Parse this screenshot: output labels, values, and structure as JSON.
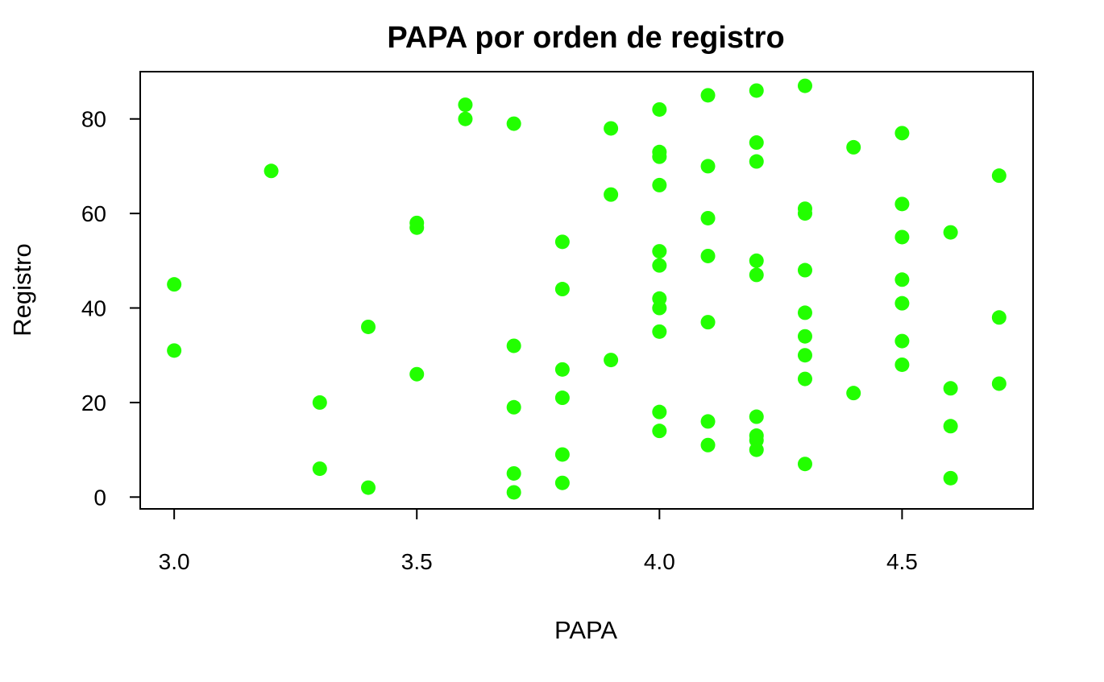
{
  "chart_data": {
    "type": "scatter",
    "title": "PAPA por orden de registro",
    "xlabel": "PAPA",
    "ylabel": "Registro",
    "xlim": [
      2.93,
      4.77
    ],
    "ylim": [
      -2.5,
      90
    ],
    "x_ticks": [
      3.0,
      3.5,
      4.0,
      4.5
    ],
    "x_tick_labels": [
      "3.0",
      "3.5",
      "4.0",
      "4.5"
    ],
    "y_ticks": [
      0,
      20,
      40,
      60,
      80
    ],
    "y_tick_labels": [
      "0",
      "20",
      "40",
      "60",
      "80"
    ],
    "grid": false,
    "point_color": "#22ff00",
    "points": [
      {
        "x": 3.0,
        "y": 45
      },
      {
        "x": 3.0,
        "y": 31
      },
      {
        "x": 3.2,
        "y": 69
      },
      {
        "x": 3.3,
        "y": 20
      },
      {
        "x": 3.3,
        "y": 6
      },
      {
        "x": 3.4,
        "y": 36
      },
      {
        "x": 3.4,
        "y": 2
      },
      {
        "x": 3.5,
        "y": 58
      },
      {
        "x": 3.5,
        "y": 57
      },
      {
        "x": 3.5,
        "y": 26
      },
      {
        "x": 3.6,
        "y": 83
      },
      {
        "x": 3.6,
        "y": 80
      },
      {
        "x": 3.7,
        "y": 79
      },
      {
        "x": 3.7,
        "y": 32
      },
      {
        "x": 3.7,
        "y": 19
      },
      {
        "x": 3.7,
        "y": 5
      },
      {
        "x": 3.7,
        "y": 1
      },
      {
        "x": 3.8,
        "y": 54
      },
      {
        "x": 3.8,
        "y": 44
      },
      {
        "x": 3.8,
        "y": 27
      },
      {
        "x": 3.8,
        "y": 21
      },
      {
        "x": 3.8,
        "y": 9
      },
      {
        "x": 3.8,
        "y": 3
      },
      {
        "x": 3.9,
        "y": 78
      },
      {
        "x": 3.9,
        "y": 64
      },
      {
        "x": 3.9,
        "y": 29
      },
      {
        "x": 4.0,
        "y": 82
      },
      {
        "x": 4.0,
        "y": 73
      },
      {
        "x": 4.0,
        "y": 72
      },
      {
        "x": 4.0,
        "y": 66
      },
      {
        "x": 4.0,
        "y": 52
      },
      {
        "x": 4.0,
        "y": 49
      },
      {
        "x": 4.0,
        "y": 42
      },
      {
        "x": 4.0,
        "y": 40
      },
      {
        "x": 4.0,
        "y": 35
      },
      {
        "x": 4.0,
        "y": 18
      },
      {
        "x": 4.0,
        "y": 14
      },
      {
        "x": 4.1,
        "y": 85
      },
      {
        "x": 4.1,
        "y": 70
      },
      {
        "x": 4.1,
        "y": 59
      },
      {
        "x": 4.1,
        "y": 51
      },
      {
        "x": 4.1,
        "y": 37
      },
      {
        "x": 4.1,
        "y": 16
      },
      {
        "x": 4.1,
        "y": 11
      },
      {
        "x": 4.2,
        "y": 86
      },
      {
        "x": 4.2,
        "y": 75
      },
      {
        "x": 4.2,
        "y": 71
      },
      {
        "x": 4.2,
        "y": 50
      },
      {
        "x": 4.2,
        "y": 47
      },
      {
        "x": 4.2,
        "y": 17
      },
      {
        "x": 4.2,
        "y": 13
      },
      {
        "x": 4.2,
        "y": 12
      },
      {
        "x": 4.2,
        "y": 10
      },
      {
        "x": 4.3,
        "y": 87
      },
      {
        "x": 4.3,
        "y": 61
      },
      {
        "x": 4.3,
        "y": 60
      },
      {
        "x": 4.3,
        "y": 48
      },
      {
        "x": 4.3,
        "y": 39
      },
      {
        "x": 4.3,
        "y": 34
      },
      {
        "x": 4.3,
        "y": 30
      },
      {
        "x": 4.3,
        "y": 25
      },
      {
        "x": 4.3,
        "y": 7
      },
      {
        "x": 4.4,
        "y": 74
      },
      {
        "x": 4.4,
        "y": 22
      },
      {
        "x": 4.5,
        "y": 77
      },
      {
        "x": 4.5,
        "y": 62
      },
      {
        "x": 4.5,
        "y": 55
      },
      {
        "x": 4.5,
        "y": 46
      },
      {
        "x": 4.5,
        "y": 41
      },
      {
        "x": 4.5,
        "y": 33
      },
      {
        "x": 4.5,
        "y": 28
      },
      {
        "x": 4.6,
        "y": 56
      },
      {
        "x": 4.6,
        "y": 23
      },
      {
        "x": 4.6,
        "y": 15
      },
      {
        "x": 4.6,
        "y": 4
      },
      {
        "x": 4.7,
        "y": 68
      },
      {
        "x": 4.7,
        "y": 38
      },
      {
        "x": 4.7,
        "y": 24
      }
    ]
  }
}
